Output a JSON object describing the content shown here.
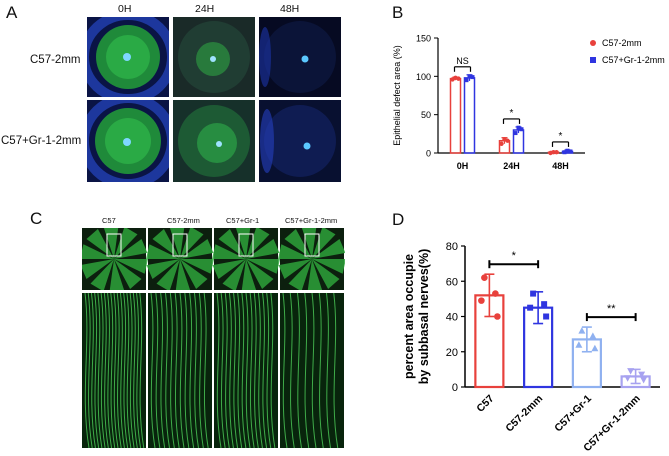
{
  "panels": {
    "a": "A",
    "b": "B",
    "c": "C",
    "d": "D"
  },
  "panel_a": {
    "columns": [
      "0H",
      "24H",
      "48H"
    ],
    "rows": [
      "C57-2mm",
      "C57+Gr-1-2mm"
    ]
  },
  "panel_c": {
    "columns": [
      "C57",
      "C57-2mm",
      "C57+Gr-1",
      "C57+Gr-1-2mm"
    ]
  },
  "colors": {
    "red": "#e8413c",
    "blue": "#2f35e0",
    "light_blue": "#8fb1f0",
    "lavender": "#a7a2f0",
    "fluor_green": "#27c93f",
    "eye_bg": "#0b1238"
  },
  "chart_data": [
    {
      "id": "B",
      "type": "bar",
      "ylabel": "Epithelial defect area (%)",
      "ylim": [
        0,
        150
      ],
      "yticks": [
        0,
        50,
        100,
        150
      ],
      "categories": [
        "0H",
        "24H",
        "48H"
      ],
      "series": [
        {
          "name": "C57-2mm",
          "color": "#e8413c",
          "values": [
            97,
            16,
            1
          ],
          "err": [
            2,
            4,
            1
          ],
          "points": [
            [
              96,
              98,
              97
            ],
            [
              12,
              18,
              16
            ],
            [
              0,
              1,
              1
            ]
          ]
        },
        {
          "name": "C57+Gr-1-2mm",
          "color": "#2f35e0",
          "values": [
            98,
            30,
            2
          ],
          "err": [
            4,
            4,
            2
          ],
          "points": [
            [
              95,
              100,
              99
            ],
            [
              26,
              33,
              31
            ],
            [
              1,
              3,
              2
            ]
          ]
        }
      ],
      "significance": [
        {
          "category": "0H",
          "label": "NS"
        },
        {
          "category": "24H",
          "label": "*"
        },
        {
          "category": "48H",
          "label": "*"
        }
      ],
      "legend_position": "top-right"
    },
    {
      "id": "D",
      "type": "bar",
      "ylabel_line1": "percent area occupie",
      "ylabel_line2": "by subbasal nerves(%)",
      "ylim": [
        0,
        80
      ],
      "yticks": [
        0,
        20,
        40,
        60,
        80
      ],
      "categories": [
        "C57",
        "C57-2mm",
        "C57+Gr-1",
        "C57+Gr-1-2mm"
      ],
      "values": [
        52,
        45,
        27,
        6
      ],
      "err": [
        12,
        9,
        7,
        4
      ],
      "colors": [
        "#e8413c",
        "#2f35e0",
        "#8fb1f0",
        "#a7a2f0"
      ],
      "points": [
        [
          62,
          49,
          40,
          53
        ],
        [
          53,
          45,
          40,
          47
        ],
        [
          32,
          24,
          22,
          29
        ],
        [
          9,
          5,
          4,
          7
        ]
      ],
      "significance": [
        {
          "from": "C57",
          "to": "C57-2mm",
          "label": "*"
        },
        {
          "from": "C57+Gr-1",
          "to": "C57+Gr-1-2mm",
          "label": "**"
        }
      ]
    }
  ]
}
